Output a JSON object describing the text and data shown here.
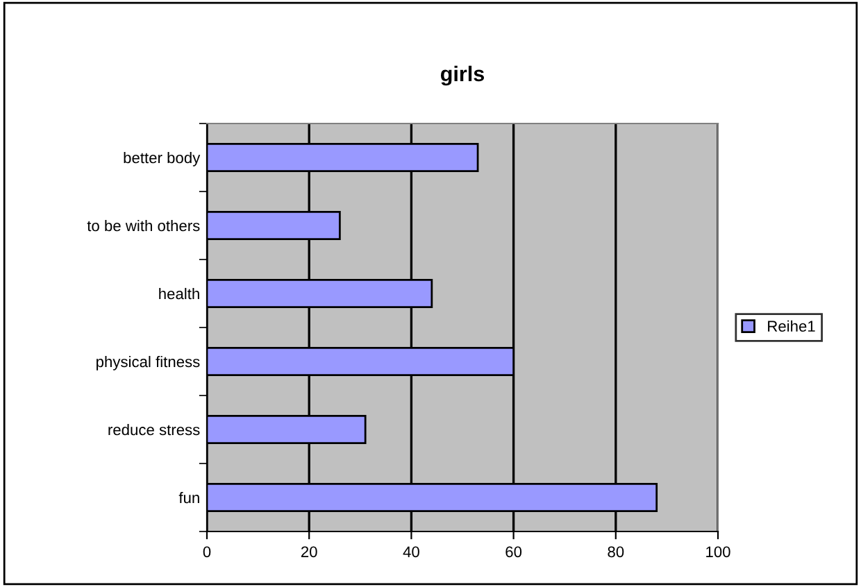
{
  "chart_data": {
    "type": "bar",
    "orientation": "horizontal",
    "title": "girls",
    "categories": [
      "better body",
      "to be with others",
      "health",
      "physical fitness",
      "reduce stress",
      "fun"
    ],
    "series": [
      {
        "name": "Reihe1",
        "color": "#9999ff",
        "values": [
          53,
          26,
          44,
          60,
          31,
          88
        ]
      }
    ],
    "xlim": [
      0,
      100
    ],
    "xticks": [
      0,
      20,
      40,
      60,
      80,
      100
    ],
    "grid": "x",
    "legend": "right"
  }
}
